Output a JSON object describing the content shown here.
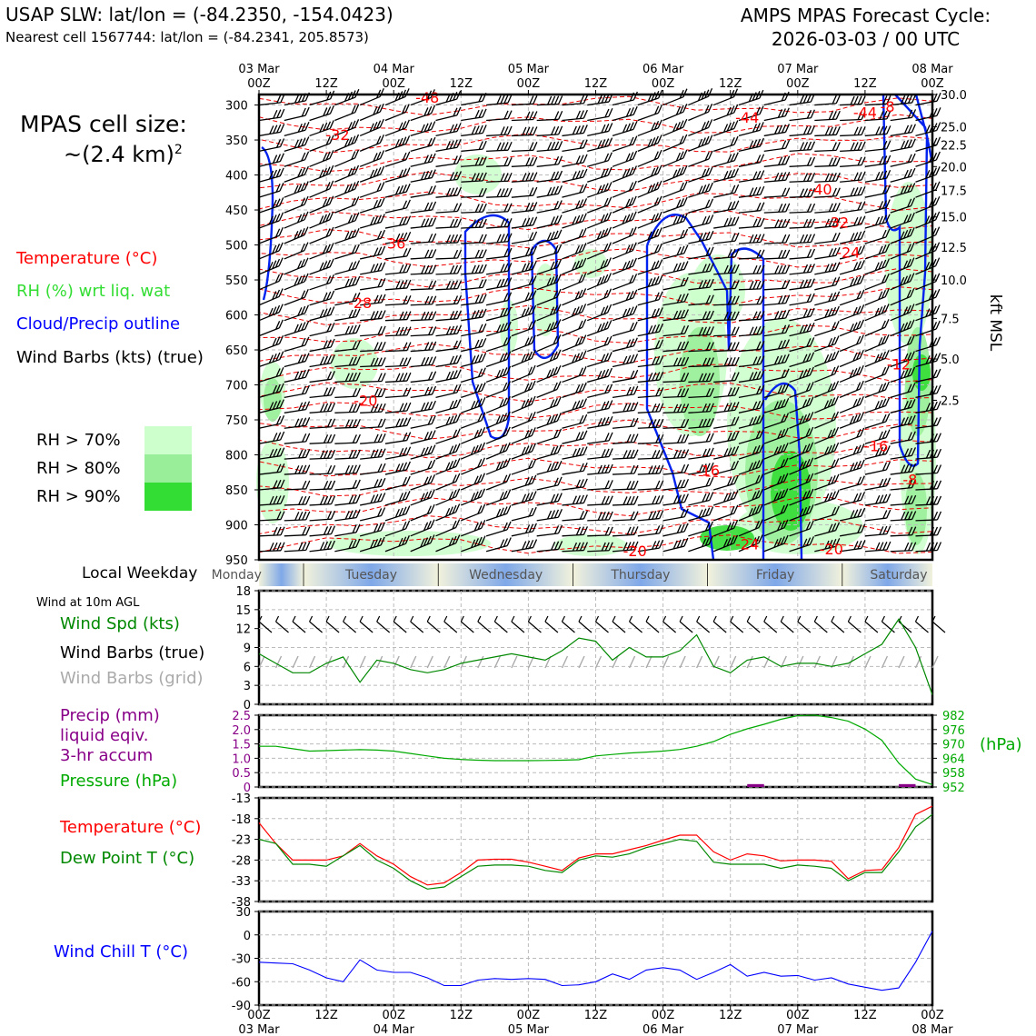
{
  "header": {
    "title_left": "USAP SLW: lat/lon = (-84.2350, -154.0423)",
    "subtitle_left": "Nearest cell 1567744: lat/lon = (-84.2341, 205.8573)",
    "title_right_line1": "AMPS MPAS Forecast Cycle:",
    "title_right_line2": "2026-03-03 / 00 UTC"
  },
  "cell_size": {
    "line1": "MPAS cell size:",
    "line2": "~(2.4 km)",
    "superscript": "2"
  },
  "legend": {
    "temperature": {
      "label": "Temperature (°C)",
      "color": "#ff0000"
    },
    "rh": {
      "label": "RH (%) wrt liq. wat",
      "color": "#33dd33"
    },
    "cloud": {
      "label": "Cloud/Precip outline",
      "color": "#0000ff"
    },
    "barbs": {
      "label": "Wind Barbs (kts) (true)",
      "color": "#000000"
    },
    "rh70": {
      "label": "RH > 70%",
      "color": "#ccffcc"
    },
    "rh80": {
      "label": "RH > 80%",
      "color": "#99ee99"
    },
    "rh90": {
      "label": "RH > 90%",
      "color": "#33dd33"
    }
  },
  "time_axis": {
    "top_labels": [
      {
        "date": "03 Mar",
        "hour": "00Z"
      },
      {
        "date": "",
        "hour": "12Z"
      },
      {
        "date": "04 Mar",
        "hour": "00Z"
      },
      {
        "date": "",
        "hour": "12Z"
      },
      {
        "date": "05 Mar",
        "hour": "00Z"
      },
      {
        "date": "",
        "hour": "12Z"
      },
      {
        "date": "06 Mar",
        "hour": "00Z"
      },
      {
        "date": "",
        "hour": "12Z"
      },
      {
        "date": "07 Mar",
        "hour": "00Z"
      },
      {
        "date": "",
        "hour": "12Z"
      },
      {
        "date": "08 Mar",
        "hour": "00Z"
      }
    ]
  },
  "weekday_bar": {
    "label": "Local Weekday",
    "days": [
      "Monday",
      "Tuesday",
      "Wednesday",
      "Thursday",
      "Friday",
      "Saturday"
    ]
  },
  "panels": {
    "wind": {
      "header": "Wind at 10m AGL",
      "labels": [
        {
          "text": "Wind Spd (kts)",
          "color": "#008800"
        },
        {
          "text": "Wind Barbs (true)",
          "color": "#000000"
        },
        {
          "text": "Wind Barbs (grid)",
          "color": "#aaaaaa"
        }
      ]
    },
    "precip": {
      "labels": [
        {
          "text": "Precip (mm)",
          "color": "#880088"
        },
        {
          "text": "liquid eqiv.",
          "color": "#880088"
        },
        {
          "text": "3-hr accum",
          "color": "#880088"
        },
        {
          "text": "Pressure (hPa)",
          "color": "#00aa00"
        }
      ],
      "right_unit": "(hPa)"
    },
    "temp": {
      "labels": [
        {
          "text": "Temperature (°C)",
          "color": "#ff0000"
        },
        {
          "text": "Dew Point T (°C)",
          "color": "#008800"
        }
      ]
    },
    "chill": {
      "labels": [
        {
          "text": "Wind Chill T (°C)",
          "color": "#0000ff"
        }
      ]
    }
  },
  "chart_data": [
    {
      "id": "vertical_section",
      "type": "heatmap",
      "title": "",
      "ylabel_left": "",
      "ylabel_right": "kft MSL",
      "pressure_ticks": [
        300,
        350,
        400,
        450,
        500,
        550,
        600,
        650,
        700,
        750,
        800,
        850,
        900,
        950
      ],
      "ylim": [
        950,
        285
      ],
      "kft_ticks": [
        "30.0",
        "25.0",
        "22.5",
        "20.0",
        "17.5",
        "15.0",
        "12.5",
        "10.0",
        "7.5",
        "5.0",
        "2.5"
      ],
      "kft_pressure": [
        285,
        331,
        357,
        388,
        422,
        460,
        503,
        550,
        605,
        663,
        722
      ],
      "x_range_hours": [
        0,
        120
      ],
      "temperature_labels": [
        {
          "t": 30,
          "p": 297,
          "text": "-48"
        },
        {
          "t": 87,
          "p": 325,
          "text": "-44"
        },
        {
          "t": 108,
          "p": 318,
          "text": "-44"
        },
        {
          "t": 112,
          "p": 310,
          "text": "-8"
        },
        {
          "t": 14,
          "p": 350,
          "text": "-32"
        },
        {
          "t": 100,
          "p": 428,
          "text": "-40"
        },
        {
          "t": 103,
          "p": 475,
          "text": "-32"
        },
        {
          "t": 24,
          "p": 505,
          "text": "-36"
        },
        {
          "t": 105,
          "p": 518,
          "text": "-24"
        },
        {
          "t": 18,
          "p": 590,
          "text": "-28"
        },
        {
          "t": 19,
          "p": 730,
          "text": "-20"
        },
        {
          "t": 114,
          "p": 678,
          "text": "-12"
        },
        {
          "t": 110,
          "p": 795,
          "text": "-16"
        },
        {
          "t": 80,
          "p": 830,
          "text": "-16"
        },
        {
          "t": 116,
          "p": 843,
          "text": "-8"
        },
        {
          "t": 87,
          "p": 935,
          "text": "-24"
        },
        {
          "t": 102,
          "p": 942,
          "text": "-20"
        },
        {
          "t": 67,
          "p": 945,
          "text": "-20"
        }
      ]
    },
    {
      "id": "wind_10m",
      "type": "line",
      "ylim": [
        0,
        18
      ],
      "yticks": [
        0,
        3,
        6,
        9,
        12,
        15,
        18
      ],
      "series": [
        {
          "name": "Wind Spd (kts)",
          "x": [
            0,
            3,
            6,
            9,
            12,
            15,
            18,
            21,
            24,
            27,
            30,
            33,
            36,
            39,
            42,
            45,
            48,
            51,
            54,
            57,
            60,
            63,
            66,
            69,
            72,
            75,
            78,
            81,
            84,
            87,
            90,
            93,
            96,
            99,
            102,
            105,
            108,
            111,
            114,
            117,
            120
          ],
          "values": [
            8,
            6.5,
            5,
            5,
            6.5,
            7.5,
            3.5,
            7,
            6.5,
            5.5,
            5,
            5.5,
            6.5,
            7,
            7.5,
            8,
            7.5,
            7,
            8.5,
            10.5,
            10,
            7,
            9,
            7.5,
            7.5,
            8.5,
            11,
            6,
            5,
            7,
            7.5,
            6,
            6.5,
            6.5,
            6,
            6.5,
            8,
            9.5,
            13.5,
            9,
            1.5
          ]
        }
      ]
    },
    {
      "id": "precip_pressure",
      "type": "line",
      "ylim_left": [
        0,
        2.5
      ],
      "yticks_left": [
        0,
        0.5,
        1.0,
        1.5,
        2.0,
        2.5
      ],
      "ylim_right": [
        952,
        982
      ],
      "yticks_right": [
        952,
        958,
        964,
        970,
        976,
        982
      ],
      "precip_bars": [
        {
          "x": 90,
          "value": 0.1
        },
        {
          "x": 117,
          "value": 0.1
        }
      ],
      "series": [
        {
          "name": "Pressure (hPa)",
          "x": [
            0,
            3,
            6,
            9,
            12,
            15,
            18,
            21,
            24,
            27,
            30,
            33,
            36,
            39,
            42,
            45,
            48,
            51,
            54,
            57,
            60,
            63,
            66,
            69,
            72,
            75,
            78,
            81,
            84,
            87,
            90,
            93,
            96,
            99,
            102,
            105,
            108,
            111,
            114,
            117,
            120
          ],
          "values": [
            969,
            969,
            968,
            967,
            967.2,
            967.4,
            967.6,
            967.4,
            967,
            966,
            965,
            964,
            963.5,
            963.2,
            963,
            963,
            963,
            963.1,
            963.2,
            963.4,
            965,
            965.6,
            966.2,
            966.6,
            967,
            967.7,
            969,
            971,
            974,
            976.3,
            978.2,
            980.3,
            981.8,
            982,
            981,
            979.5,
            976.2,
            971.5,
            962,
            955.3,
            953
          ]
        }
      ]
    },
    {
      "id": "temperature",
      "type": "line",
      "ylim": [
        -38,
        -13
      ],
      "yticks": [
        -38,
        -33,
        -28,
        -23,
        -18,
        -13
      ],
      "series": [
        {
          "name": "Temperature (°C)",
          "x": [
            0,
            3,
            6,
            9,
            12,
            15,
            18,
            21,
            24,
            27,
            30,
            33,
            36,
            39,
            42,
            45,
            48,
            51,
            54,
            57,
            60,
            63,
            66,
            69,
            72,
            75,
            78,
            81,
            84,
            87,
            90,
            93,
            96,
            99,
            102,
            105,
            108,
            111,
            114,
            117,
            120
          ],
          "values": [
            -19,
            -24,
            -28,
            -28,
            -28,
            -27,
            -24,
            -27,
            -29,
            -32,
            -34,
            -33.5,
            -31,
            -28,
            -27.8,
            -27.8,
            -28.5,
            -29.5,
            -30.5,
            -27.5,
            -26.5,
            -26.5,
            -25.5,
            -24.5,
            -23.2,
            -22,
            -22,
            -26,
            -28,
            -26.5,
            -27,
            -28.2,
            -28,
            -28,
            -28.3,
            -32.5,
            -30.5,
            -30.3,
            -25,
            -17,
            -15
          ]
        },
        {
          "name": "Dew Point T (°C)",
          "x": [
            0,
            3,
            6,
            9,
            12,
            15,
            18,
            21,
            24,
            27,
            30,
            33,
            36,
            39,
            42,
            45,
            48,
            51,
            54,
            57,
            60,
            63,
            66,
            69,
            72,
            75,
            78,
            81,
            84,
            87,
            90,
            93,
            96,
            99,
            102,
            105,
            108,
            111,
            114,
            117,
            120
          ],
          "values": [
            -23,
            -24,
            -29,
            -29,
            -29.5,
            -27,
            -24.5,
            -28,
            -30,
            -33,
            -35,
            -34.5,
            -32,
            -29.5,
            -29.2,
            -29.2,
            -29.5,
            -30.5,
            -31,
            -28,
            -27,
            -27.3,
            -26.5,
            -25,
            -24,
            -23,
            -23.5,
            -28.5,
            -29,
            -29,
            -29,
            -30,
            -29.2,
            -29.5,
            -30,
            -33,
            -31,
            -31,
            -26,
            -20,
            -17
          ]
        }
      ]
    },
    {
      "id": "wind_chill",
      "type": "line",
      "ylim": [
        -90,
        30
      ],
      "yticks": [
        -90,
        -60,
        -30,
        0,
        30
      ],
      "series": [
        {
          "name": "Wind Chill T (°C)",
          "x": [
            0,
            3,
            6,
            9,
            12,
            15,
            18,
            21,
            24,
            27,
            30,
            33,
            36,
            39,
            42,
            45,
            48,
            51,
            54,
            57,
            60,
            63,
            66,
            69,
            72,
            75,
            78,
            81,
            84,
            87,
            90,
            93,
            96,
            99,
            102,
            105,
            108,
            111,
            114,
            117,
            120
          ],
          "values": [
            -35,
            -36,
            -37,
            -45,
            -55,
            -60,
            -32,
            -45,
            -48,
            -48,
            -55,
            -65,
            -65,
            -58,
            -56,
            -57,
            -56,
            -57,
            -65,
            -64,
            -60,
            -50,
            -57,
            -45,
            -42,
            -45,
            -57,
            -48,
            -38,
            -53,
            -48,
            -53,
            -52,
            -58,
            -55,
            -63,
            -67,
            -71,
            -68,
            -35,
            5
          ]
        }
      ]
    }
  ]
}
